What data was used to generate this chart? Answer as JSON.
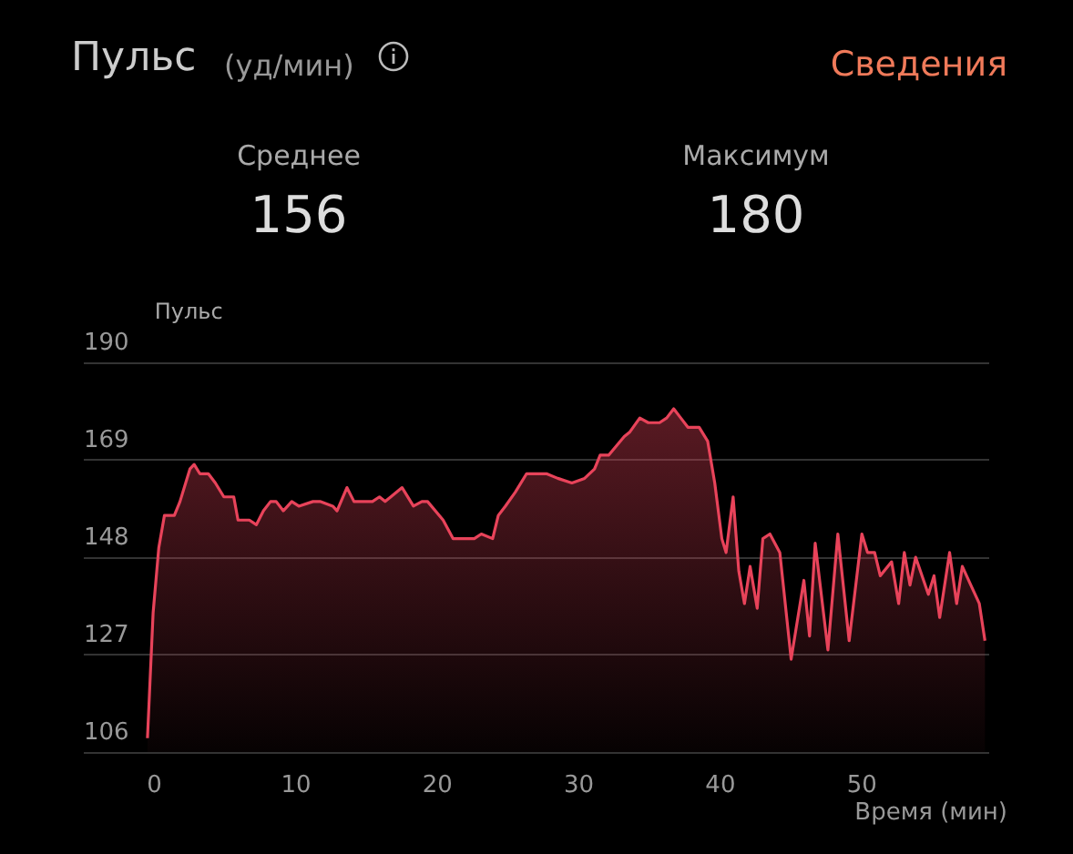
{
  "chart_data": {
    "type": "area",
    "title": "Пульс",
    "subtitle": "(уд/мин)",
    "ylabel": "Пульс",
    "xlabel": "Время (мин)",
    "annotations": [
      "Сведения",
      "Среднее",
      "156",
      "Максимум",
      "180"
    ],
    "x": [
      -0.5,
      -0.1,
      0.3,
      0.7,
      1.4,
      1.8,
      2.5,
      2.8,
      3.2,
      3.5,
      3.8,
      4.3,
      4.9,
      5.6,
      5.9,
      6.7,
      7.2,
      7.7,
      8.2,
      8.6,
      9.1,
      9.7,
      10.2,
      11.2,
      11.7,
      12.6,
      12.9,
      13.6,
      14.1,
      15.4,
      15.9,
      16.3,
      16.7,
      17.5,
      18.3,
      18.9,
      19.3,
      20.4,
      21.1,
      22.6,
      23.1,
      23.9,
      24.3,
      24.8,
      25.5,
      26.3,
      27.0,
      27.7,
      28.5,
      29.5,
      30.4,
      31.1,
      31.5,
      32.1,
      33.2,
      33.6,
      34.3,
      34.9,
      35.7,
      36.2,
      36.7,
      37.2,
      37.7,
      38.5,
      39.1,
      39.6,
      40.1,
      40.4,
      40.9,
      41.3,
      41.7,
      42.1,
      42.6,
      43.0,
      43.5,
      44.2,
      45.0,
      45.9,
      46.3,
      46.7,
      47.6,
      48.3,
      49.1,
      50.0,
      50.4,
      50.9,
      51.3,
      52.1,
      52.6,
      53.0,
      53.4,
      53.8,
      54.7,
      55.1,
      55.5,
      56.2,
      56.7,
      57.1,
      57.7,
      58.3,
      58.7
    ],
    "series": [
      {
        "color": "#e8435a",
        "values": [
          109,
          136,
          150,
          157,
          157,
          160,
          167,
          168,
          166,
          166,
          166,
          164,
          161,
          161,
          156,
          156,
          155,
          158,
          160,
          160,
          158,
          160,
          159,
          160,
          160,
          159,
          158,
          163,
          160,
          160,
          161,
          160,
          161,
          163,
          159,
          160,
          160,
          156,
          152,
          152,
          153,
          152,
          157,
          159,
          162,
          166,
          166,
          166,
          165,
          164,
          165,
          167,
          170,
          170,
          174,
          175,
          178,
          177,
          177,
          178,
          180,
          178,
          176,
          176,
          173,
          164,
          152,
          149,
          161,
          145,
          138,
          146,
          137,
          152,
          153,
          149,
          126,
          143,
          131,
          151,
          128,
          153,
          130,
          153,
          149,
          149,
          144,
          147,
          138,
          149,
          142,
          148,
          140,
          144,
          135,
          149,
          138,
          146,
          142,
          138,
          130
        ]
      }
    ],
    "xlim": [
      -5,
      59
    ],
    "xticks": [
      0,
      10,
      20,
      30,
      40,
      50
    ],
    "ylim": [
      106,
      190
    ],
    "yticks": [
      106,
      127,
      148,
      169,
      190
    ],
    "grid": "y",
    "marker": "none"
  }
}
